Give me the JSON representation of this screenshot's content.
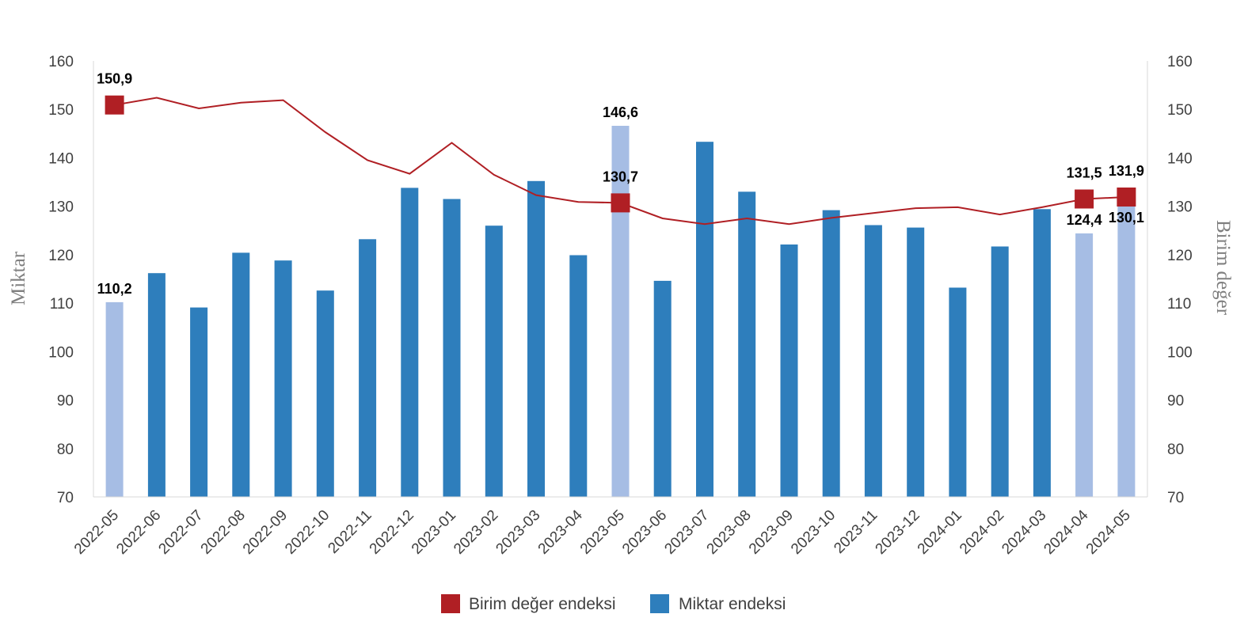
{
  "chart_data": {
    "type": "bar",
    "categories": [
      "2022-05",
      "2022-06",
      "2022-07",
      "2022-08",
      "2022-09",
      "2022-10",
      "2022-11",
      "2022-12",
      "2023-01",
      "2023-02",
      "2023-03",
      "2023-04",
      "2023-05",
      "2023-06",
      "2023-07",
      "2023-08",
      "2023-09",
      "2023-10",
      "2023-11",
      "2023-12",
      "2024-01",
      "2024-02",
      "2024-03",
      "2024-04",
      "2024-05"
    ],
    "series": [
      {
        "name": "Miktar endeksi",
        "kind": "bar",
        "axis": "left",
        "color": "#2e7ebc",
        "highlight_color": "#a6bde4",
        "highlight_indices": [
          0,
          12,
          23,
          24
        ],
        "values": [
          110.2,
          116.2,
          109.1,
          120.4,
          118.8,
          112.6,
          123.2,
          133.8,
          131.5,
          126.0,
          135.2,
          119.9,
          146.6,
          114.6,
          143.3,
          133.0,
          122.1,
          129.2,
          126.1,
          125.6,
          113.2,
          121.7,
          129.4,
          124.4,
          130.1
        ],
        "labeled_indices": [
          0,
          12,
          23,
          24
        ]
      },
      {
        "name": "Birim değer endeksi",
        "kind": "line",
        "axis": "right",
        "color": "#b01f24",
        "values": [
          150.9,
          152.4,
          150.2,
          151.4,
          151.9,
          145.3,
          139.5,
          136.7,
          143.1,
          136.5,
          132.3,
          130.9,
          130.7,
          127.5,
          126.3,
          127.5,
          126.3,
          127.6,
          128.6,
          129.6,
          129.8,
          128.3,
          129.8,
          131.5,
          131.9
        ],
        "labeled_indices": [
          0,
          12,
          23,
          24
        ]
      }
    ],
    "ylabel_left": "Miktar",
    "ylabel_right": "Birim değer",
    "ylim_left": [
      70,
      160
    ],
    "ylim_right": [
      70,
      160
    ],
    "yticks": [
      70,
      80,
      90,
      100,
      110,
      120,
      130,
      140,
      150,
      160
    ],
    "grid": false,
    "legend_position": "bottom",
    "decimal_separator": ","
  },
  "legend": {
    "items": [
      {
        "label": "Birim değer endeksi",
        "color": "#b01f24"
      },
      {
        "label": "Miktar endeksi",
        "color": "#2e7ebc"
      }
    ]
  }
}
